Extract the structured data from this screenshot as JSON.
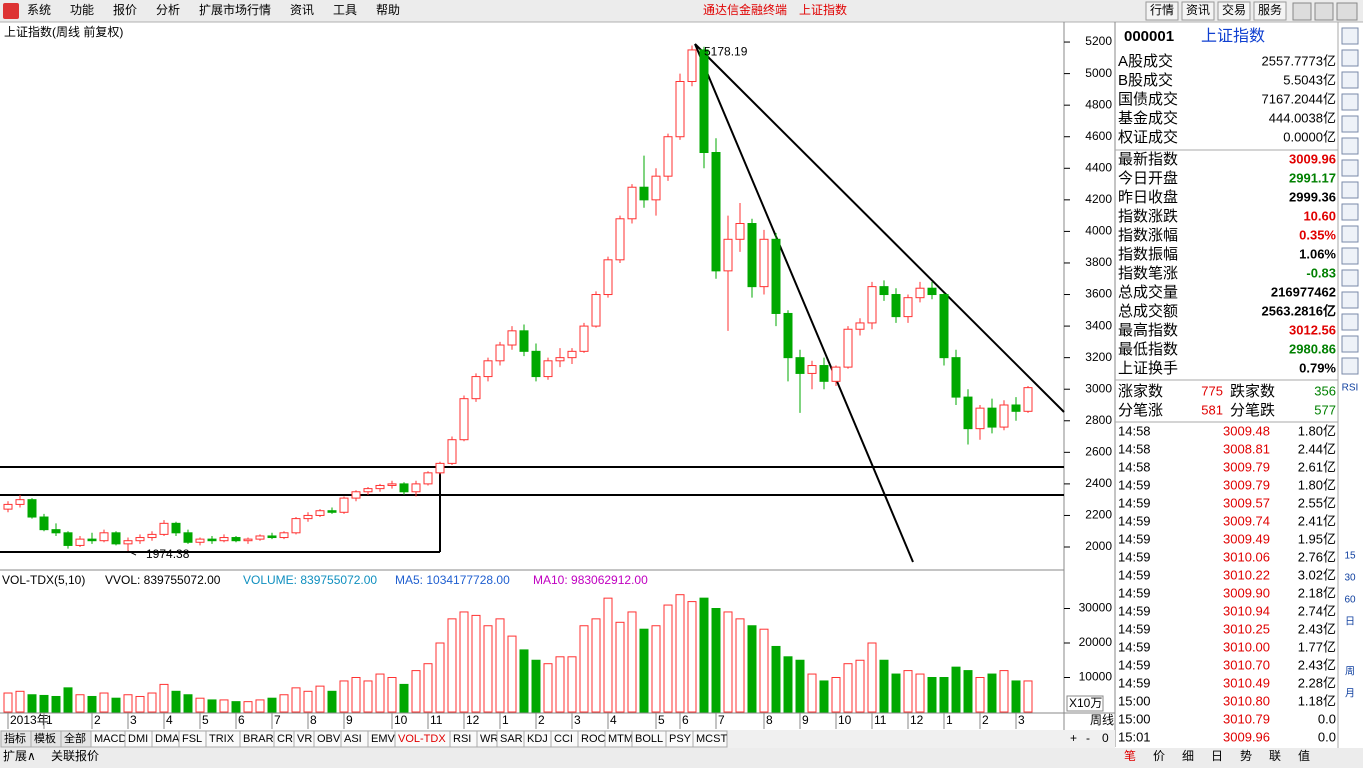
{
  "menu": [
    "系统",
    "功能",
    "报价",
    "分析",
    "扩展市场行情",
    "资讯",
    "工具",
    "帮助"
  ],
  "app_title": "通达信金融终端",
  "app_subtitle": "上证指数",
  "top_buttons": [
    "行情",
    "资讯",
    "交易",
    "服务"
  ],
  "chart_data": [
    {
      "type": "candlestick",
      "title": "上证指数(周线 前复权)",
      "period": "周线",
      "categories": [
        "2013年",
        null,
        null,
        "1",
        null,
        null,
        null,
        "2",
        null,
        null,
        "3",
        null,
        null,
        "4",
        null,
        null,
        "5",
        null,
        null,
        "6",
        null,
        null,
        "7",
        null,
        null,
        "8",
        null,
        null,
        "9",
        null,
        null,
        null,
        "10",
        null,
        null,
        "11",
        null,
        null,
        "12",
        null,
        null,
        "1",
        null,
        null,
        "2",
        null,
        null,
        "3",
        null,
        null,
        "4",
        null,
        null,
        null,
        "5",
        null,
        "6",
        null,
        null,
        "7",
        null,
        null,
        null,
        "8",
        null,
        null,
        "9",
        null,
        null,
        "10",
        null,
        null,
        "11",
        null,
        null,
        "12",
        null,
        null,
        "1",
        null,
        null,
        "2",
        null,
        null,
        "3",
        null
      ],
      "open": [
        2240,
        2270,
        2300,
        2190,
        2110,
        2090,
        2010,
        2050,
        2040,
        2090,
        2020,
        2040,
        2060,
        2080,
        2150,
        2090,
        2030,
        2050,
        2040,
        2060,
        2040,
        2050,
        2070,
        2060,
        2090,
        2180,
        2200,
        2230,
        2220,
        2310,
        2350,
        2370,
        2390,
        2400,
        2350,
        2400,
        2470,
        2530,
        2680,
        2940,
        3080,
        3180,
        3280,
        3370,
        3240,
        3080,
        3180,
        3200,
        3240,
        3400,
        3600,
        3820,
        4080,
        4280,
        4200,
        4350,
        4600,
        4950,
        5150,
        4500,
        3750,
        3950,
        4050,
        3650,
        3950,
        3480,
        3200,
        3100,
        3150,
        3050,
        3140,
        3380,
        3420,
        3650,
        3600,
        3460,
        3580,
        3640,
        3600,
        3200,
        2950,
        2750,
        2880,
        2760,
        2900,
        2860
      ],
      "high": [
        2290,
        2330,
        2310,
        2210,
        2150,
        2100,
        2070,
        2090,
        2110,
        2100,
        2060,
        2080,
        2100,
        2170,
        2160,
        2110,
        2060,
        2070,
        2080,
        2070,
        2060,
        2080,
        2090,
        2100,
        2190,
        2220,
        2240,
        2250,
        2320,
        2360,
        2380,
        2400,
        2420,
        2410,
        2420,
        2480,
        2540,
        2700,
        2960,
        3100,
        3200,
        3300,
        3400,
        3410,
        3290,
        3200,
        3260,
        3260,
        3420,
        3620,
        3840,
        4100,
        4300,
        4480,
        4400,
        4620,
        5000,
        5178.19,
        5170,
        4590,
        4100,
        4180,
        4080,
        4010,
        3990,
        3500,
        3250,
        3180,
        3200,
        3150,
        3400,
        3450,
        3680,
        3690,
        3640,
        3600,
        3680,
        3680,
        3610,
        3250,
        3000,
        2900,
        2940,
        2930,
        2950,
        3020
      ],
      "low": [
        2220,
        2250,
        2180,
        2100,
        2070,
        1990,
        2000,
        2020,
        2030,
        2010,
        1974.38,
        2020,
        2040,
        2070,
        2070,
        2020,
        2010,
        2020,
        2030,
        2030,
        2020,
        2040,
        2050,
        2050,
        2080,
        2160,
        2190,
        2210,
        2210,
        2290,
        2330,
        2350,
        2370,
        2330,
        2320,
        2390,
        2460,
        2520,
        2670,
        2920,
        3050,
        3150,
        3250,
        3210,
        3050,
        3060,
        3140,
        3160,
        3230,
        3390,
        3580,
        3800,
        4050,
        4150,
        4100,
        4320,
        4580,
        4920,
        4400,
        3700,
        3370,
        3870,
        3580,
        3600,
        3400,
        3050,
        2850,
        3000,
        3000,
        3020,
        3130,
        3340,
        3380,
        3560,
        3420,
        3420,
        3550,
        3570,
        3150,
        2900,
        2650,
        2680,
        2720,
        2740,
        2800,
        2850
      ],
      "close": [
        2270,
        2300,
        2190,
        2110,
        2090,
        2010,
        2050,
        2040,
        2090,
        2020,
        2040,
        2060,
        2080,
        2150,
        2090,
        2030,
        2050,
        2040,
        2060,
        2040,
        2050,
        2070,
        2060,
        2090,
        2180,
        2200,
        2230,
        2220,
        2310,
        2350,
        2370,
        2390,
        2400,
        2350,
        2400,
        2470,
        2530,
        2680,
        2940,
        3080,
        3180,
        3280,
        3370,
        3240,
        3080,
        3180,
        3200,
        3240,
        3400,
        3600,
        3820,
        4080,
        4280,
        4200,
        4350,
        4600,
        4950,
        5150,
        4500,
        3750,
        3950,
        4050,
        3650,
        3950,
        3480,
        3200,
        3100,
        3150,
        3050,
        3140,
        3380,
        3420,
        3650,
        3600,
        3460,
        3580,
        3640,
        3600,
        3200,
        2950,
        2750,
        2880,
        2760,
        2900,
        2860,
        3009.96
      ],
      "up_color": "#ff3232",
      "down_color": "#00a800",
      "ylim": [
        1886,
        5289
      ],
      "yticks": [
        2000,
        2200,
        2400,
        2600,
        2800,
        3000,
        3200,
        3400,
        3600,
        3800,
        4000,
        4200,
        4400,
        4600,
        4800,
        5000,
        5200
      ]
    },
    {
      "type": "bar",
      "header": [
        {
          "text": "VOL-TDX(5,10)",
          "color": "#000000"
        },
        {
          "text": "VVOL: 839755072.00",
          "color": "#000000"
        },
        {
          "text": "VOLUME: 839755072.00",
          "color": "#0f8fbf"
        },
        {
          "text": "MA5: 1034177728.00",
          "color": "#1f5fd0"
        },
        {
          "text": "MA10: 983062912.00",
          "color": "#c000c0"
        }
      ],
      "values": [
        5500,
        6000,
        5000,
        4800,
        4500,
        7000,
        5000,
        4500,
        5500,
        4000,
        5000,
        4500,
        5500,
        8000,
        6000,
        5000,
        4000,
        3500,
        3500,
        3000,
        3000,
        3500,
        4000,
        5000,
        7000,
        6000,
        7500,
        6000,
        9000,
        10000,
        9000,
        11000,
        10000,
        8000,
        12000,
        14000,
        20000,
        27000,
        29000,
        28000,
        25000,
        27000,
        22000,
        18000,
        15000,
        14000,
        16000,
        16000,
        25000,
        27000,
        33000,
        26000,
        29000,
        24000,
        25000,
        31000,
        34000,
        32000,
        33000,
        30000,
        29000,
        27000,
        25000,
        24000,
        19000,
        16000,
        15000,
        11000,
        9000,
        10000,
        14000,
        15000,
        20000,
        15000,
        11000,
        12000,
        11000,
        10000,
        10000,
        13000,
        12000,
        10000,
        11000,
        12000,
        9000,
        9000
      ],
      "unit_label": "X10万",
      "ylim": [
        0,
        40000
      ],
      "yticks": [
        10000,
        20000,
        30000
      ]
    }
  ],
  "quote": {
    "code": "000001",
    "name": "上证指数",
    "volumes": [
      {
        "label": "A股成交",
        "value": "2557.7773亿"
      },
      {
        "label": "B股成交",
        "value": "5.5043亿"
      },
      {
        "label": "国债成交",
        "value": "7167.2044亿"
      },
      {
        "label": "基金成交",
        "value": "444.0038亿"
      },
      {
        "label": "权证成交",
        "value": "0.0000亿"
      }
    ],
    "stats": [
      {
        "label": "最新指数",
        "value": "3009.96",
        "color": "#e00000"
      },
      {
        "label": "今日开盘",
        "value": "2991.17",
        "color": "#008000"
      },
      {
        "label": "昨日收盘",
        "value": "2999.36",
        "color": "#000000"
      },
      {
        "label": "指数涨跌",
        "value": "10.60",
        "color": "#e00000"
      },
      {
        "label": "指数涨幅",
        "value": "0.35%",
        "color": "#e00000"
      },
      {
        "label": "指数振幅",
        "value": "1.06%",
        "color": "#000000"
      },
      {
        "label": "指数笔涨",
        "value": "-0.83",
        "color": "#008000"
      },
      {
        "label": "总成交量",
        "value": "216977462",
        "color": "#000000"
      },
      {
        "label": "总成交额",
        "value": "2563.2816亿",
        "color": "#000000"
      },
      {
        "label": "最高指数",
        "value": "3012.56",
        "color": "#e00000"
      },
      {
        "label": "最低指数",
        "value": "2980.86",
        "color": "#008000"
      },
      {
        "label": "上证换手",
        "value": "0.79%",
        "color": "#000000"
      }
    ],
    "breadth": [
      {
        "label": "涨家数",
        "value": "775",
        "label2": "跌家数",
        "value2": "356"
      },
      {
        "label": "分笔涨",
        "value": "581",
        "label2": "分笔跌",
        "value2": "577"
      }
    ],
    "ticks": [
      [
        "14:58",
        "3009.48",
        "1.80亿"
      ],
      [
        "14:58",
        "3008.81",
        "2.44亿"
      ],
      [
        "14:58",
        "3009.79",
        "2.61亿"
      ],
      [
        "14:59",
        "3009.79",
        "1.80亿"
      ],
      [
        "14:59",
        "3009.57",
        "2.55亿"
      ],
      [
        "14:59",
        "3009.74",
        "2.41亿"
      ],
      [
        "14:59",
        "3009.49",
        "1.95亿"
      ],
      [
        "14:59",
        "3010.06",
        "2.76亿"
      ],
      [
        "14:59",
        "3010.22",
        "3.02亿"
      ],
      [
        "14:59",
        "3009.90",
        "2.18亿"
      ],
      [
        "14:59",
        "3010.94",
        "2.74亿"
      ],
      [
        "14:59",
        "3010.25",
        "2.43亿"
      ],
      [
        "14:59",
        "3010.00",
        "1.77亿"
      ],
      [
        "14:59",
        "3010.70",
        "2.43亿"
      ],
      [
        "14:59",
        "3010.49",
        "2.28亿"
      ],
      [
        "15:00",
        "3010.80",
        "1.18亿"
      ],
      [
        "15:00",
        "3010.79",
        "0.0"
      ],
      [
        "15:01",
        "3009.96",
        "0.0"
      ]
    ]
  },
  "indicator_tabs": [
    "指标",
    "模板",
    "全部",
    "MACD",
    "DMI",
    "DMA",
    "FSL",
    "TRIX",
    "BRAR",
    "CR",
    "VR",
    "OBV",
    "ASI",
    "EMV",
    "VOL-TDX",
    "RSI",
    "WR",
    "SAR",
    "KDJ",
    "CCI",
    "ROC",
    "MTM",
    "BOLL",
    "PSY",
    "MCST"
  ],
  "zoom_buttons": [
    "+",
    "-",
    "0"
  ],
  "status_bar": [
    "扩展∧",
    "关联报价"
  ],
  "panel_tabs": [
    "笔",
    "价",
    "细",
    "日",
    "势",
    "联",
    "值"
  ],
  "side_toolbar": [
    "RSI",
    "15",
    "30",
    "60",
    "日",
    "周",
    "月"
  ]
}
